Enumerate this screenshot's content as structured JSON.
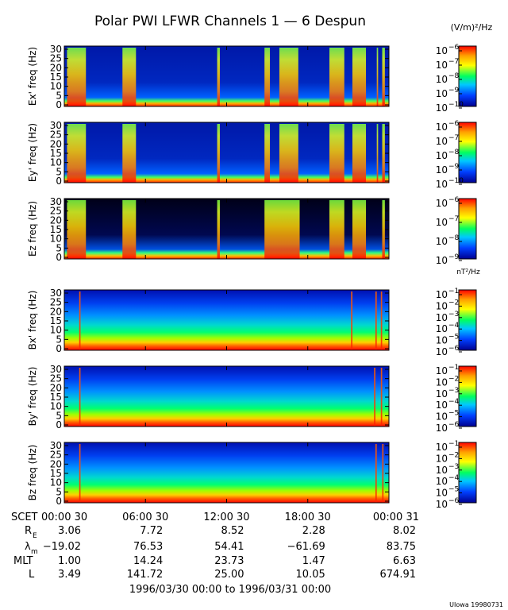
{
  "title": "Polar PWI LFWR Channels 1 — 6 Despun",
  "footer_range": "1996/03/30 00:00 to 1996/03/31 00:00",
  "credit": "UIowa 19980731",
  "units": {
    "electric": "(V/m)²/Hz",
    "magnetic": "nT²/Hz"
  },
  "panel_ylabels": [
    "Ex' freq (Hz)",
    "Ey' freq (Hz)",
    "Ez freq (Hz)",
    "Bx' freq (Hz)",
    "By' freq (Hz)",
    "Bz freq (Hz)"
  ],
  "colorbar_ticks": {
    "electric_a": [
      "10",
      "−6",
      "10",
      "−7",
      "10",
      "−8",
      "10",
      "−9",
      "10",
      "−10"
    ],
    "electric_z": [
      "10",
      "−6",
      "10",
      "−7",
      "10",
      "−8",
      "10",
      "−9"
    ],
    "magnetic": [
      "10",
      "−1",
      "10",
      "−2",
      "10",
      "−3",
      "10",
      "−4",
      "10",
      "−5",
      "10",
      "−6"
    ]
  },
  "ephemeris": {
    "row_labels": [
      "SCET",
      "R",
      "E",
      "λ",
      "m",
      "MLT",
      "L"
    ],
    "scet": [
      "00:00 30",
      "06:00 30",
      "12:00 30",
      "18:00 30",
      "00:00 31"
    ],
    "re": [
      "3.06",
      "7.72",
      "8.52",
      "2.28",
      "8.02"
    ],
    "lambda_m": [
      "−19.02",
      "76.53",
      "54.41",
      "−61.69",
      "83.75"
    ],
    "mlt": [
      "1.00",
      "14.24",
      "23.73",
      "1.47",
      "6.63"
    ],
    "l": [
      "3.49",
      "141.72",
      "25.00",
      "10.05",
      "674.91"
    ]
  },
  "chart_data": {
    "type": "heatmap",
    "title": "Polar PWI LFWR Channels 1 — 6 Despun",
    "xlabel": "",
    "x_ticks": [
      "00:00 30",
      "06:00 30",
      "12:00 30",
      "18:00 30",
      "00:00 31"
    ],
    "x_range_hours": [
      0,
      24
    ],
    "ylim": [
      0,
      30
    ],
    "y_ticks": [
      0,
      5,
      10,
      15,
      20,
      25,
      30
    ],
    "colormap": [
      "#ff0000",
      "#ffa000",
      "#ffff00",
      "#00ff00",
      "#00c8c8",
      "#0050ff",
      "#0000a0"
    ],
    "panels": [
      {
        "ylabel": "Ex' freq (Hz)",
        "colorbar_range": [
          -10,
          -6
        ],
        "colorbar_units": "(V/m)²/Hz",
        "bursts_hours": [
          [
            0.2,
            1.6
          ],
          [
            4.3,
            5.3
          ],
          [
            11.3,
            11.5
          ],
          [
            14.8,
            15.2
          ],
          [
            15.9,
            17.3
          ],
          [
            19.6,
            20.7
          ],
          [
            21.3,
            22.3
          ],
          [
            23.1,
            23.2
          ],
          [
            23.5,
            23.7
          ]
        ]
      },
      {
        "ylabel": "Ey' freq (Hz)",
        "colorbar_range": [
          -10,
          -6
        ],
        "colorbar_units": "(V/m)²/Hz",
        "bursts_hours": [
          [
            0.2,
            1.6
          ],
          [
            4.3,
            5.3
          ],
          [
            11.3,
            11.5
          ],
          [
            14.8,
            15.2
          ],
          [
            15.9,
            17.3
          ],
          [
            19.6,
            20.7
          ],
          [
            21.3,
            22.3
          ],
          [
            23.1,
            23.2
          ],
          [
            23.5,
            23.7
          ]
        ]
      },
      {
        "ylabel": "Ez freq (Hz)",
        "colorbar_range": [
          -9,
          -6
        ],
        "colorbar_units": "(V/m)²/Hz",
        "bursts_hours": [
          [
            0.2,
            1.6
          ],
          [
            4.3,
            5.3
          ],
          [
            11.3,
            11.5
          ],
          [
            14.8,
            17.4
          ],
          [
            19.6,
            20.7
          ],
          [
            21.3,
            22.3
          ],
          [
            23.5,
            23.7
          ]
        ]
      },
      {
        "ylabel": "Bx' freq (Hz)",
        "colorbar_range": [
          -6.5,
          -1
        ],
        "colorbar_units": "nT²/Hz",
        "bursts_hours": [
          [
            1.1,
            1.2
          ],
          [
            21.2,
            21.3
          ],
          [
            23.0,
            23.1
          ],
          [
            23.4,
            23.5
          ]
        ]
      },
      {
        "ylabel": "By' freq (Hz)",
        "colorbar_range": [
          -6.5,
          -1
        ],
        "colorbar_units": "nT²/Hz",
        "bursts_hours": [
          [
            1.1,
            1.2
          ],
          [
            22.9,
            23.0
          ],
          [
            23.4,
            23.5
          ]
        ]
      },
      {
        "ylabel": "Bz freq (Hz)",
        "colorbar_range": [
          -6.5,
          -1
        ],
        "colorbar_units": "nT²/Hz",
        "bursts_hours": [
          [
            1.1,
            1.2
          ],
          [
            23.0,
            23.1
          ],
          [
            23.5,
            23.6
          ]
        ]
      }
    ]
  }
}
